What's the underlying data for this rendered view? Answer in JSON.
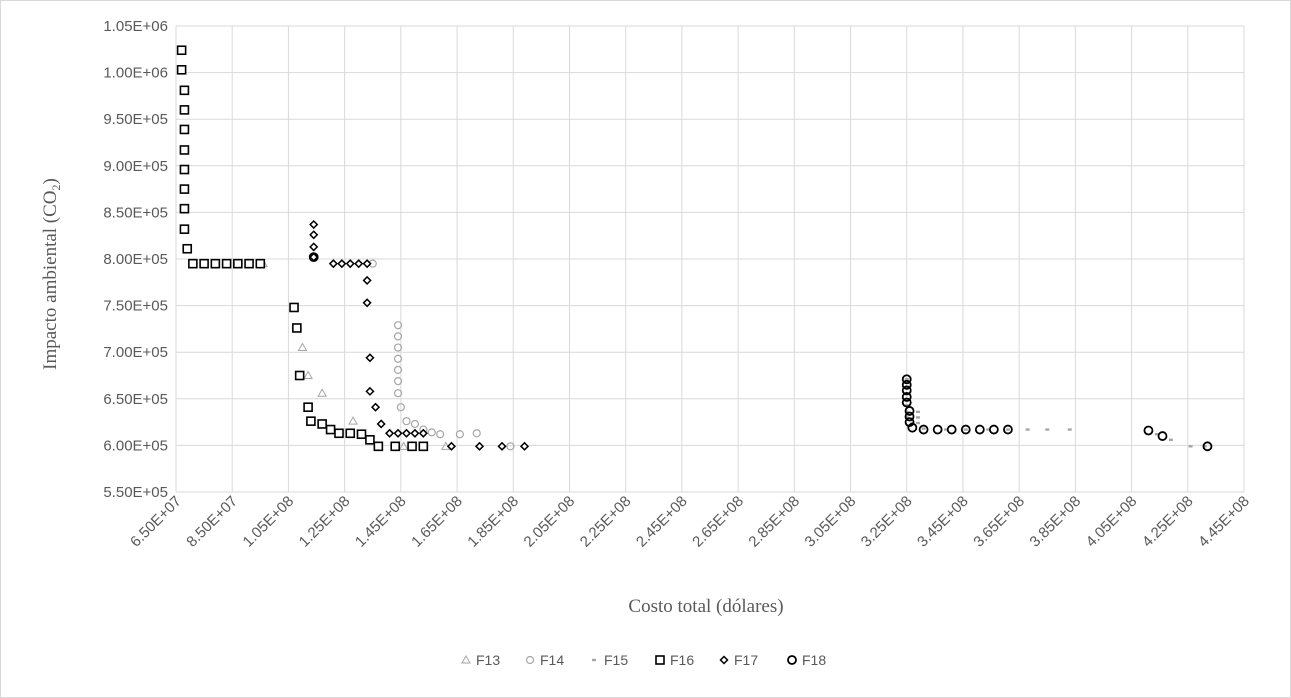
{
  "chart_data": {
    "type": "scatter",
    "xlabel": "Costo total (dólares)",
    "ylabel_main": "Impacto ambiental (CO",
    "ylabel_sub": "2",
    "ylabel_close": ")",
    "xlim": [
      65000000,
      445000000
    ],
    "ylim": [
      550000,
      1050000
    ],
    "xticks": [
      "6.50E+07",
      "8.50E+07",
      "1.05E+08",
      "1.25E+08",
      "1.45E+08",
      "1.65E+08",
      "1.85E+08",
      "2.05E+08",
      "2.25E+08",
      "2.45E+08",
      "2.65E+08",
      "2.85E+08",
      "3.05E+08",
      "3.25E+08",
      "3.45E+08",
      "3.65E+08",
      "3.85E+08",
      "4.05E+08",
      "4.25E+08",
      "4.45E+08"
    ],
    "yticks": [
      "5.50E+05",
      "6.00E+05",
      "6.50E+05",
      "7.00E+05",
      "7.50E+05",
      "8.00E+05",
      "8.50E+05",
      "9.00E+05",
      "9.50E+05",
      "1.00E+06",
      "1.05E+06"
    ],
    "grid": true,
    "legend_position": "bottom",
    "series": [
      {
        "name": "F13",
        "marker": "triangle",
        "color": "#a6a6a6",
        "points": [
          [
            96000000,
            795000
          ],
          [
            110000000,
            705000
          ],
          [
            112000000,
            675000
          ],
          [
            117000000,
            656000
          ],
          [
            128000000,
            626000
          ],
          [
            146000000,
            599000
          ],
          [
            161000000,
            599000
          ]
        ]
      },
      {
        "name": "F14",
        "marker": "circle",
        "color": "#a6a6a6",
        "points": [
          [
            135000000,
            795000
          ],
          [
            144000000,
            729000
          ],
          [
            144000000,
            717000
          ],
          [
            144000000,
            705000
          ],
          [
            144000000,
            693000
          ],
          [
            144000000,
            681000
          ],
          [
            144000000,
            669000
          ],
          [
            144000000,
            656000
          ],
          [
            145000000,
            641000
          ],
          [
            147000000,
            626000
          ],
          [
            150000000,
            623000
          ],
          [
            153000000,
            617000
          ],
          [
            156000000,
            614000
          ],
          [
            159000000,
            612000
          ],
          [
            166000000,
            612000
          ],
          [
            172000000,
            613000
          ],
          [
            184000000,
            599000
          ]
        ]
      },
      {
        "name": "F15",
        "marker": "dash",
        "color": "#a6a6a6",
        "points": [
          [
            325000000,
            671000
          ],
          [
            325000000,
            662000
          ],
          [
            325000000,
            655000
          ],
          [
            325000000,
            649000
          ],
          [
            325000000,
            643000
          ],
          [
            325000000,
            636000
          ],
          [
            325000000,
            630000
          ],
          [
            327000000,
            624000
          ],
          [
            329000000,
            636000
          ],
          [
            329000000,
            630000
          ],
          [
            329000000,
            624000
          ],
          [
            331000000,
            618000
          ],
          [
            339000000,
            617000
          ],
          [
            346000000,
            617000
          ],
          [
            354000000,
            617000
          ],
          [
            361000000,
            617000
          ],
          [
            368000000,
            617000
          ],
          [
            375000000,
            617000
          ],
          [
            383000000,
            617000
          ],
          [
            414000000,
            612000
          ],
          [
            419000000,
            606000
          ],
          [
            426000000,
            599000
          ],
          [
            431000000,
            599000
          ]
        ]
      },
      {
        "name": "F16",
        "marker": "square",
        "color": "#000000",
        "points": [
          [
            67000000,
            1024000
          ],
          [
            67000000,
            1003000
          ],
          [
            68000000,
            981000
          ],
          [
            68000000,
            960000
          ],
          [
            68000000,
            939000
          ],
          [
            68000000,
            917000
          ],
          [
            68000000,
            896000
          ],
          [
            68000000,
            875000
          ],
          [
            68000000,
            854000
          ],
          [
            68000000,
            832000
          ],
          [
            69000000,
            811000
          ],
          [
            71000000,
            795000
          ],
          [
            75000000,
            795000
          ],
          [
            79000000,
            795000
          ],
          [
            83000000,
            795000
          ],
          [
            87000000,
            795000
          ],
          [
            91000000,
            795000
          ],
          [
            95000000,
            795000
          ],
          [
            107000000,
            748000
          ],
          [
            108000000,
            726000
          ],
          [
            109000000,
            675000
          ],
          [
            112000000,
            641000
          ],
          [
            113000000,
            626000
          ],
          [
            117000000,
            623000
          ],
          [
            120000000,
            617000
          ],
          [
            123000000,
            613000
          ],
          [
            127000000,
            613000
          ],
          [
            131000000,
            612000
          ],
          [
            134000000,
            606000
          ],
          [
            137000000,
            599000
          ],
          [
            143000000,
            599000
          ],
          [
            149000000,
            599000
          ],
          [
            153000000,
            599000
          ]
        ]
      },
      {
        "name": "F17",
        "marker": "diamond",
        "color": "#000000",
        "points": [
          [
            114000000,
            837000
          ],
          [
            114000000,
            826000
          ],
          [
            114000000,
            813000
          ],
          [
            114000000,
            802000
          ],
          [
            121000000,
            795000
          ],
          [
            124000000,
            795000
          ],
          [
            127000000,
            795000
          ],
          [
            130000000,
            795000
          ],
          [
            133000000,
            795000
          ],
          [
            133000000,
            777000
          ],
          [
            133000000,
            753000
          ],
          [
            134000000,
            694000
          ],
          [
            134000000,
            658000
          ],
          [
            136000000,
            641000
          ],
          [
            138000000,
            623000
          ],
          [
            141000000,
            613000
          ],
          [
            144000000,
            613000
          ],
          [
            147000000,
            613000
          ],
          [
            150000000,
            613000
          ],
          [
            153000000,
            613000
          ],
          [
            163000000,
            599000
          ],
          [
            173000000,
            599000
          ],
          [
            181000000,
            599000
          ],
          [
            189000000,
            599000
          ]
        ]
      },
      {
        "name": "F18",
        "marker": "ring",
        "color": "#000000",
        "points": [
          [
            114000000,
            802000
          ],
          [
            325000000,
            671000
          ],
          [
            325000000,
            665000
          ],
          [
            325000000,
            659000
          ],
          [
            325000000,
            652000
          ],
          [
            325000000,
            646000
          ],
          [
            326000000,
            637000
          ],
          [
            326000000,
            631000
          ],
          [
            326000000,
            625000
          ],
          [
            327000000,
            619000
          ],
          [
            331000000,
            617000
          ],
          [
            336000000,
            617000
          ],
          [
            341000000,
            617000
          ],
          [
            346000000,
            617000
          ],
          [
            351000000,
            617000
          ],
          [
            356000000,
            617000
          ],
          [
            361000000,
            617000
          ],
          [
            411000000,
            616000
          ],
          [
            416000000,
            610000
          ],
          [
            432000000,
            599000
          ]
        ]
      }
    ]
  }
}
